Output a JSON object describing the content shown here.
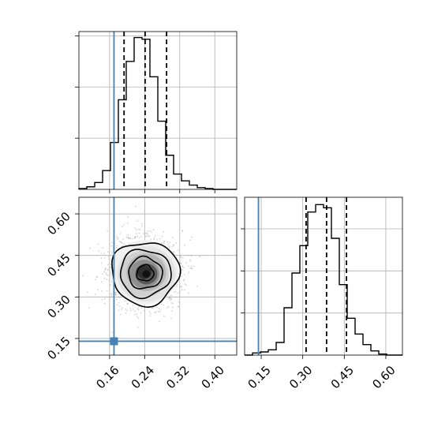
{
  "chart_data": {
    "type": "corner",
    "grid": true,
    "parameters": [
      {
        "index": 0,
        "range": [
          0.09,
          0.45
        ],
        "ticks": [
          "0.16",
          "0.24",
          "0.32",
          "0.40"
        ],
        "tick_values": [
          0.16,
          0.24,
          0.32,
          0.4
        ],
        "truth": 0.17,
        "quantiles": [
          0.193,
          0.241,
          0.29
        ]
      },
      {
        "index": 1,
        "range": [
          0.09,
          0.66
        ],
        "ticks": [
          "0.15",
          "0.30",
          "0.45",
          "0.60"
        ],
        "tick_values": [
          0.15,
          0.3,
          0.45,
          0.6
        ],
        "truth": 0.14,
        "quantiles": [
          0.312,
          0.386,
          0.458
        ]
      }
    ],
    "histograms": [
      {
        "parameter": 0,
        "bin_edges": [
          0.09,
          0.108,
          0.126,
          0.144,
          0.162,
          0.18,
          0.198,
          0.216,
          0.234,
          0.252,
          0.27,
          0.288,
          0.306,
          0.324,
          0.342,
          0.36,
          0.378,
          0.396,
          0.414,
          0.432,
          0.45
        ],
        "counts": [
          1,
          3,
          8,
          22,
          55,
          105,
          150,
          178,
          176,
          132,
          80,
          40,
          18,
          10,
          5,
          2,
          1,
          0,
          0,
          0
        ]
      },
      {
        "parameter": 1,
        "bin_edges": [
          0.09,
          0.1185,
          0.147,
          0.1755,
          0.204,
          0.2325,
          0.261,
          0.2895,
          0.318,
          0.3465,
          0.375,
          0.4035,
          0.432,
          0.4605,
          0.489,
          0.5175,
          0.546,
          0.5745,
          0.603,
          0.6315,
          0.66
        ],
        "counts": [
          0,
          2,
          3,
          5,
          12,
          45,
          78,
          104,
          136,
          143,
          140,
          111,
          67,
          35,
          20,
          10,
          4,
          1,
          0,
          0
        ]
      }
    ],
    "joint": {
      "x_parameter": 0,
      "y_parameter": 1,
      "center": [
        0.241,
        0.386
      ],
      "sigma": [
        0.036,
        0.057
      ],
      "contour_levels": [
        "0.5σ",
        "1σ",
        "1.5σ",
        "2σ"
      ],
      "truth_point": [
        0.17,
        0.14
      ]
    }
  },
  "colors": {
    "truth": "#4682b4",
    "hist": "#000000",
    "points": "#b0b0b0",
    "background": "#ffffff"
  }
}
